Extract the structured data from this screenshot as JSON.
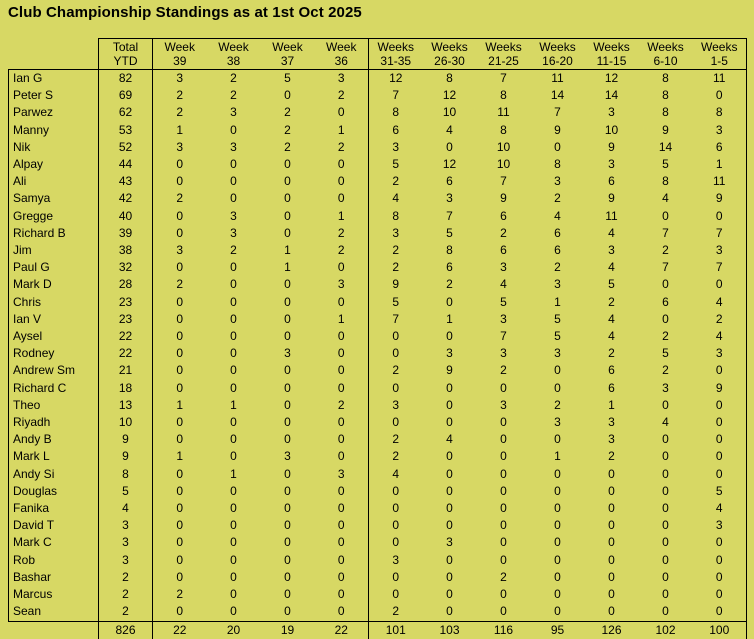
{
  "title": "Club Championship Standings as at 1st Oct 2025",
  "colors": {
    "background": "#d7d864",
    "border": "#000000",
    "text": "#000000"
  },
  "table": {
    "name_column_header": "",
    "columns": [
      {
        "line1": "Total",
        "line2": "YTD"
      },
      {
        "line1": "Week",
        "line2": "39"
      },
      {
        "line1": "Week",
        "line2": "38"
      },
      {
        "line1": "Week",
        "line2": "37"
      },
      {
        "line1": "Week",
        "line2": "36"
      },
      {
        "line1": "Weeks",
        "line2": "31-35"
      },
      {
        "line1": "Weeks",
        "line2": "26-30"
      },
      {
        "line1": "Weeks",
        "line2": "21-25"
      },
      {
        "line1": "Weeks",
        "line2": "16-20"
      },
      {
        "line1": "Weeks",
        "line2": "11-15"
      },
      {
        "line1": "Weeks",
        "line2": "6-10"
      },
      {
        "line1": "Weeks",
        "line2": "1-5"
      }
    ],
    "rows": [
      {
        "name": "Ian G",
        "values": [
          82,
          3,
          2,
          5,
          3,
          12,
          8,
          7,
          11,
          12,
          8,
          11
        ]
      },
      {
        "name": "Peter S",
        "values": [
          69,
          2,
          2,
          0,
          2,
          7,
          12,
          8,
          14,
          14,
          8,
          0
        ]
      },
      {
        "name": "Parwez",
        "values": [
          62,
          2,
          3,
          2,
          0,
          8,
          10,
          11,
          7,
          3,
          8,
          8
        ]
      },
      {
        "name": "Manny",
        "values": [
          53,
          1,
          0,
          2,
          1,
          6,
          4,
          8,
          9,
          10,
          9,
          3
        ]
      },
      {
        "name": "Nik",
        "values": [
          52,
          3,
          3,
          2,
          2,
          3,
          0,
          10,
          0,
          9,
          14,
          6
        ]
      },
      {
        "name": "Alpay",
        "values": [
          44,
          0,
          0,
          0,
          0,
          5,
          12,
          10,
          8,
          3,
          5,
          1
        ]
      },
      {
        "name": "Ali",
        "values": [
          43,
          0,
          0,
          0,
          0,
          2,
          6,
          7,
          3,
          6,
          8,
          11
        ]
      },
      {
        "name": "Samya",
        "values": [
          42,
          2,
          0,
          0,
          0,
          4,
          3,
          9,
          2,
          9,
          4,
          9
        ]
      },
      {
        "name": "Gregge",
        "values": [
          40,
          0,
          3,
          0,
          1,
          8,
          7,
          6,
          4,
          11,
          0,
          0
        ]
      },
      {
        "name": "Richard B",
        "values": [
          39,
          0,
          3,
          0,
          2,
          3,
          5,
          2,
          6,
          4,
          7,
          7
        ]
      },
      {
        "name": "Jim",
        "values": [
          38,
          3,
          2,
          1,
          2,
          2,
          8,
          6,
          6,
          3,
          2,
          3
        ]
      },
      {
        "name": "Paul G",
        "values": [
          32,
          0,
          0,
          1,
          0,
          2,
          6,
          3,
          2,
          4,
          7,
          7
        ]
      },
      {
        "name": "Mark D",
        "values": [
          28,
          2,
          0,
          0,
          3,
          9,
          2,
          4,
          3,
          5,
          0,
          0
        ]
      },
      {
        "name": "Chris",
        "values": [
          23,
          0,
          0,
          0,
          0,
          5,
          0,
          5,
          1,
          2,
          6,
          4
        ]
      },
      {
        "name": "Ian V",
        "values": [
          23,
          0,
          0,
          0,
          1,
          7,
          1,
          3,
          5,
          4,
          0,
          2
        ]
      },
      {
        "name": "Aysel",
        "values": [
          22,
          0,
          0,
          0,
          0,
          0,
          0,
          7,
          5,
          4,
          2,
          4
        ]
      },
      {
        "name": "Rodney",
        "values": [
          22,
          0,
          0,
          3,
          0,
          0,
          3,
          3,
          3,
          2,
          5,
          3
        ]
      },
      {
        "name": "Andrew Sm",
        "values": [
          21,
          0,
          0,
          0,
          0,
          2,
          9,
          2,
          0,
          6,
          2,
          0
        ]
      },
      {
        "name": "Richard C",
        "values": [
          18,
          0,
          0,
          0,
          0,
          0,
          0,
          0,
          0,
          6,
          3,
          9
        ]
      },
      {
        "name": "Theo",
        "values": [
          13,
          1,
          1,
          0,
          2,
          3,
          0,
          3,
          2,
          1,
          0,
          0
        ]
      },
      {
        "name": "Riyadh",
        "values": [
          10,
          0,
          0,
          0,
          0,
          0,
          0,
          0,
          3,
          3,
          4,
          0
        ]
      },
      {
        "name": "Andy B",
        "values": [
          9,
          0,
          0,
          0,
          0,
          2,
          4,
          0,
          0,
          3,
          0,
          0
        ]
      },
      {
        "name": "Mark L",
        "values": [
          9,
          1,
          0,
          3,
          0,
          2,
          0,
          0,
          1,
          2,
          0,
          0
        ]
      },
      {
        "name": "Andy Si",
        "values": [
          8,
          0,
          1,
          0,
          3,
          4,
          0,
          0,
          0,
          0,
          0,
          0
        ]
      },
      {
        "name": "Douglas",
        "values": [
          5,
          0,
          0,
          0,
          0,
          0,
          0,
          0,
          0,
          0,
          0,
          5
        ]
      },
      {
        "name": "Fanika",
        "values": [
          4,
          0,
          0,
          0,
          0,
          0,
          0,
          0,
          0,
          0,
          0,
          4
        ]
      },
      {
        "name": "David T",
        "values": [
          3,
          0,
          0,
          0,
          0,
          0,
          0,
          0,
          0,
          0,
          0,
          3
        ]
      },
      {
        "name": "Mark C",
        "values": [
          3,
          0,
          0,
          0,
          0,
          0,
          3,
          0,
          0,
          0,
          0,
          0
        ]
      },
      {
        "name": "Rob",
        "values": [
          3,
          0,
          0,
          0,
          0,
          3,
          0,
          0,
          0,
          0,
          0,
          0
        ]
      },
      {
        "name": "Bashar",
        "values": [
          2,
          0,
          0,
          0,
          0,
          0,
          0,
          2,
          0,
          0,
          0,
          0
        ]
      },
      {
        "name": "Marcus",
        "values": [
          2,
          2,
          0,
          0,
          0,
          0,
          0,
          0,
          0,
          0,
          0,
          0
        ]
      },
      {
        "name": "Sean",
        "values": [
          2,
          0,
          0,
          0,
          0,
          2,
          0,
          0,
          0,
          0,
          0,
          0
        ]
      }
    ],
    "totals": [
      826,
      22,
      20,
      19,
      22,
      101,
      103,
      116,
      95,
      126,
      102,
      100
    ]
  }
}
